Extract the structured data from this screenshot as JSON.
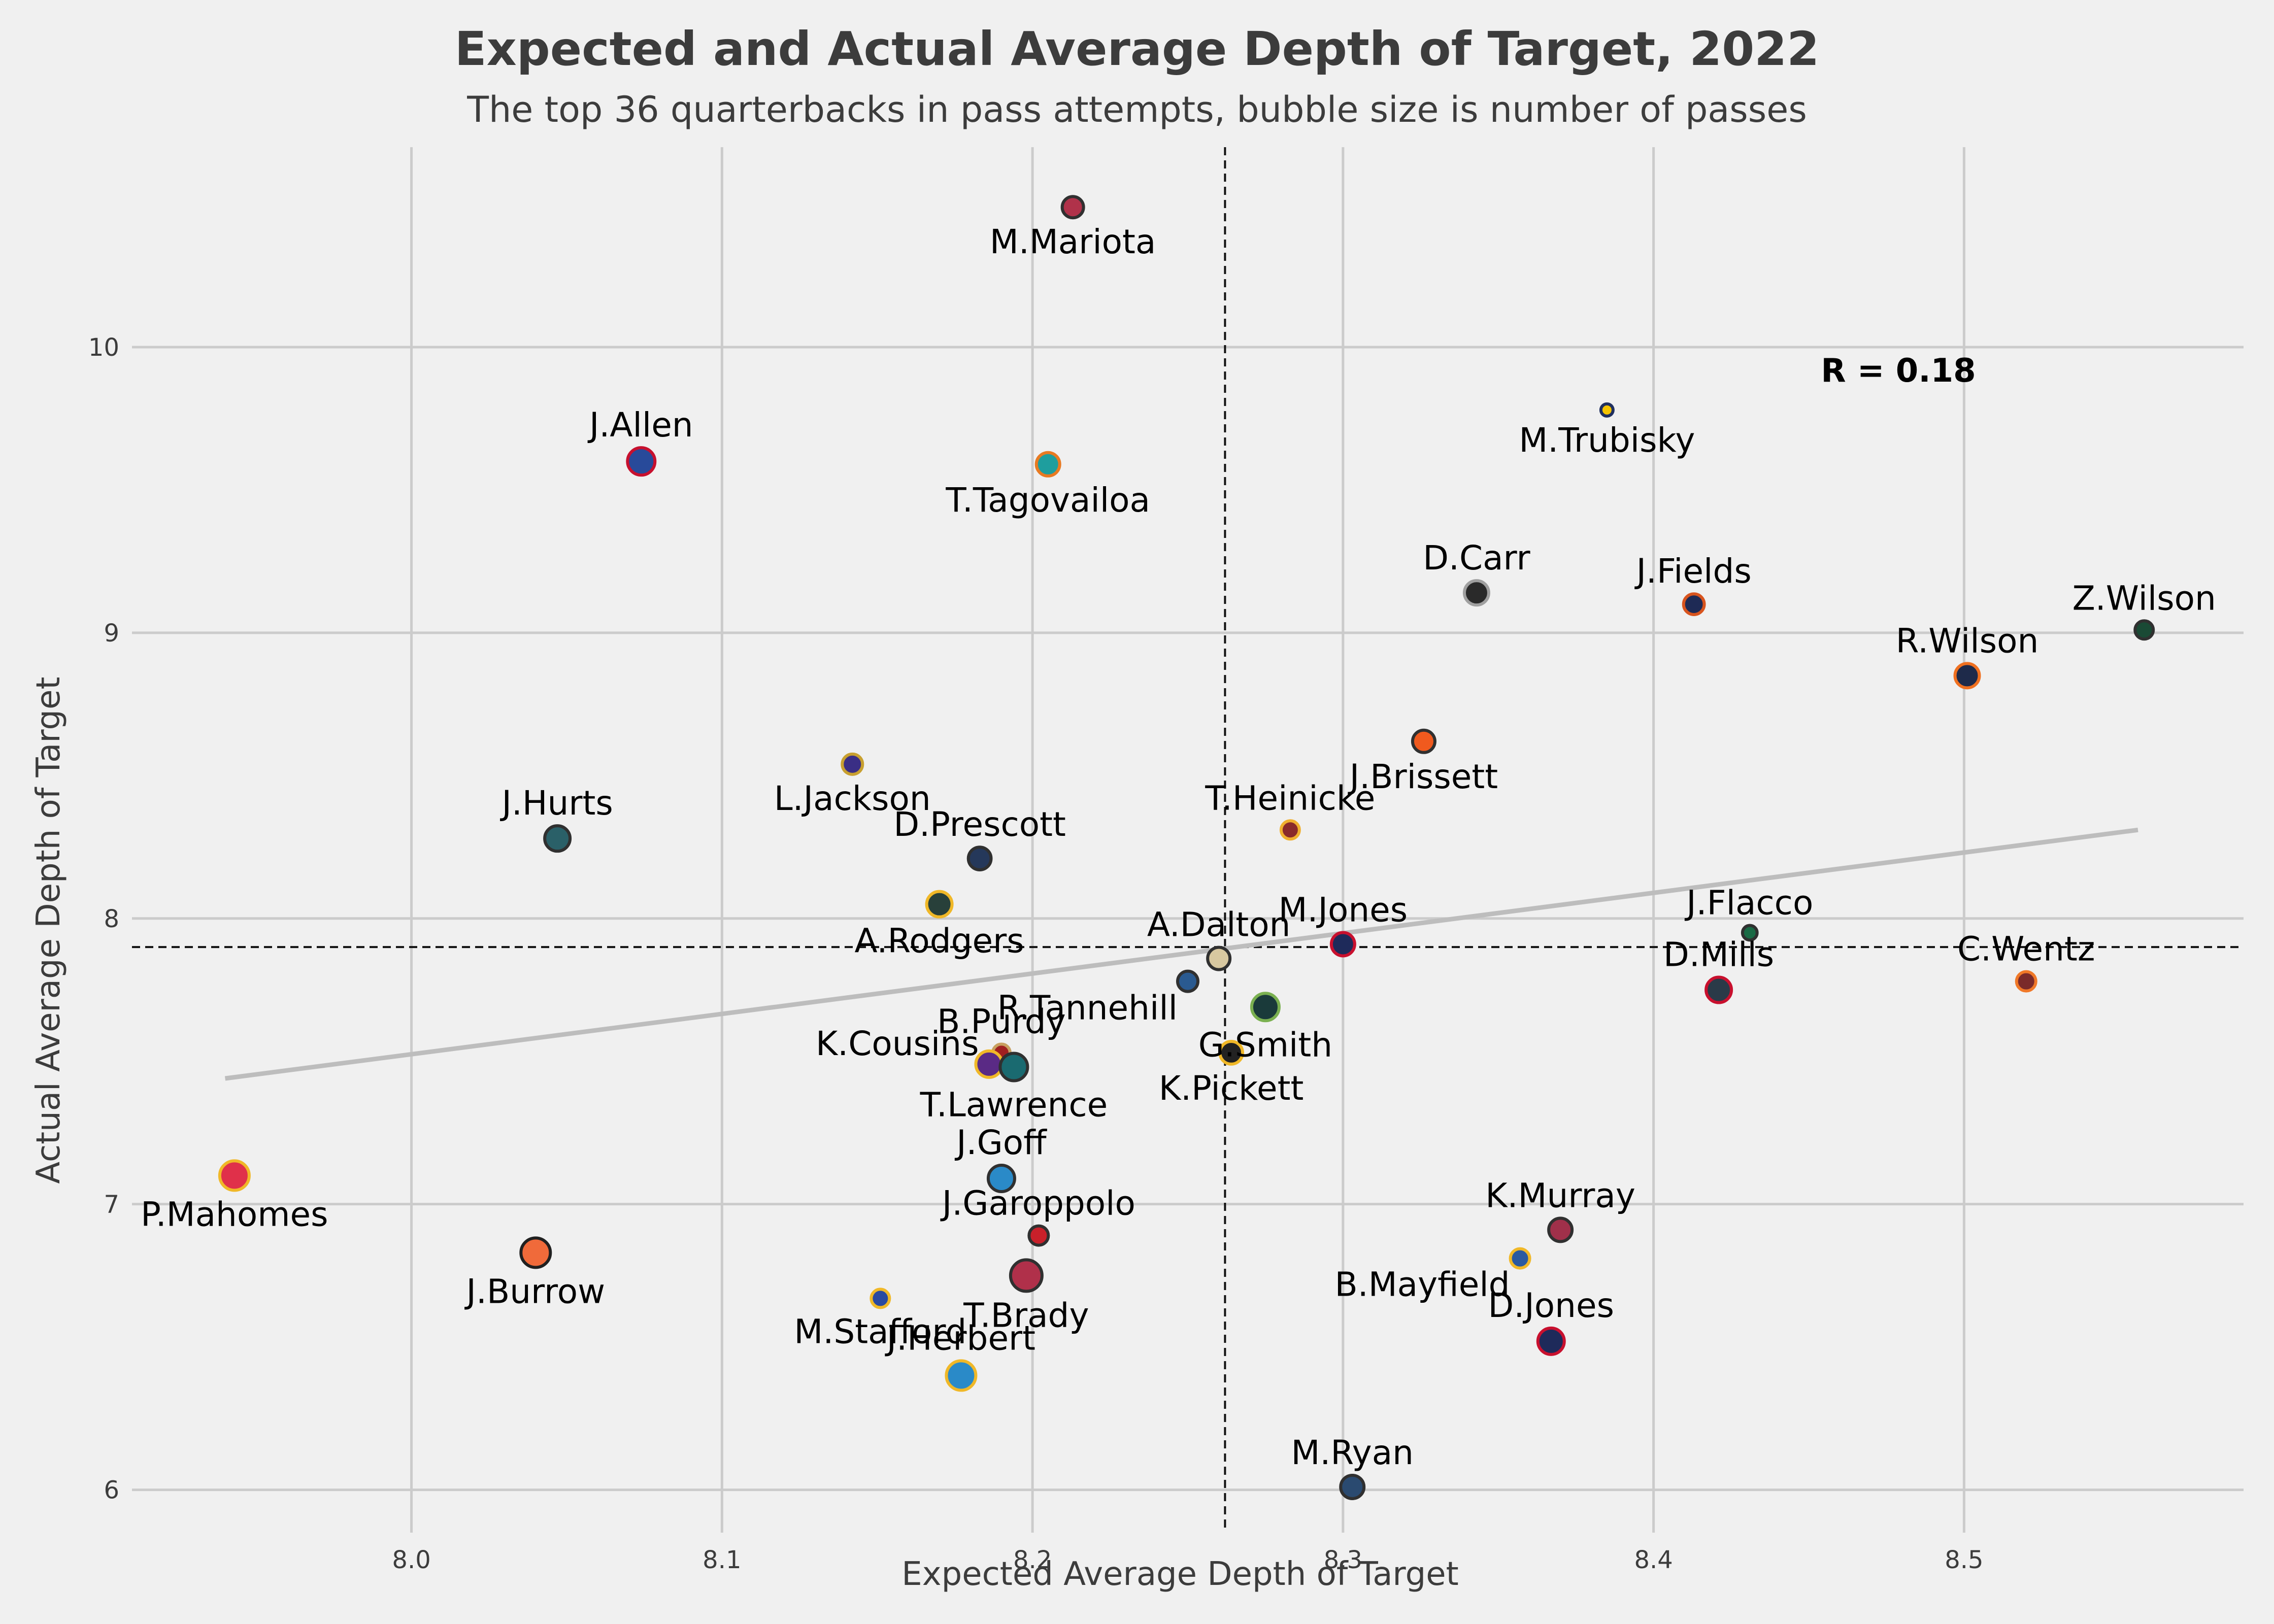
{
  "chart_data": {
    "type": "scatter",
    "title": "Expected and Actual Average Depth of Target, 2022",
    "subtitle": "The top 36 quarterbacks in pass attempts, bubble size is number of passes",
    "xlabel": "Expected Average Depth of Target",
    "ylabel": "Actual Average Depth of Target",
    "xlim": [
      7.91,
      8.59
    ],
    "ylim": [
      5.85,
      10.7
    ],
    "xticks": [
      8.0,
      8.1,
      8.2,
      8.3,
      8.4,
      8.5
    ],
    "yticks": [
      6,
      7,
      8,
      9,
      10
    ],
    "mean_x": 8.262,
    "mean_y": 7.9,
    "annotation": "R = 0.18",
    "trendline": {
      "x": [
        7.94,
        8.556
      ],
      "y": [
        7.44,
        8.31
      ],
      "color": "#bdbdbd"
    },
    "grid": true,
    "points": [
      {
        "name": "M.Mariota",
        "x": 8.213,
        "y": 10.49,
        "size": 0.65,
        "fill": "#b0324a",
        "stroke": "#303030",
        "label_pos": "below"
      },
      {
        "name": "M.Trubisky",
        "x": 8.385,
        "y": 9.78,
        "size": 0.2,
        "fill": "#f5c400",
        "stroke": "#203060",
        "label_pos": "below"
      },
      {
        "name": "J.Allen",
        "x": 8.074,
        "y": 9.6,
        "size": 0.95,
        "fill": "#284a9a",
        "stroke": "#c7102e",
        "label_pos": "above"
      },
      {
        "name": "T.Tagovailoa",
        "x": 8.205,
        "y": 9.59,
        "size": 0.75,
        "fill": "#1e9e9e",
        "stroke": "#e87a22",
        "label_pos": "below"
      },
      {
        "name": "D.Carr",
        "x": 8.343,
        "y": 9.14,
        "size": 0.8,
        "fill": "#2a2a2a",
        "stroke": "#a0a0a0",
        "label_pos": "above"
      },
      {
        "name": "J.Fields",
        "x": 8.413,
        "y": 9.1,
        "size": 0.62,
        "fill": "#1e2a55",
        "stroke": "#d8541e",
        "label_pos": "above"
      },
      {
        "name": "Z.Wilson",
        "x": 8.558,
        "y": 9.01,
        "size": 0.5,
        "fill": "#1a4a35",
        "stroke": "#303030",
        "label_pos": "above"
      },
      {
        "name": "R.Wilson",
        "x": 8.501,
        "y": 8.85,
        "size": 0.8,
        "fill": "#1e2a4a",
        "stroke": "#f07020",
        "label_pos": "above"
      },
      {
        "name": "J.Brissett",
        "x": 8.326,
        "y": 8.62,
        "size": 0.7,
        "fill": "#f05a1e",
        "stroke": "#303030",
        "label_pos": "below"
      },
      {
        "name": "L.Jackson",
        "x": 8.142,
        "y": 8.54,
        "size": 0.6,
        "fill": "#3a2e85",
        "stroke": "#c8a030",
        "label_pos": "below"
      },
      {
        "name": "T.Heinicke",
        "x": 8.283,
        "y": 8.31,
        "size": 0.5,
        "fill": "#8a2a2a",
        "stroke": "#f0b030",
        "label_pos": "above"
      },
      {
        "name": "J.Hurts",
        "x": 8.047,
        "y": 8.28,
        "size": 0.85,
        "fill": "#2a6068",
        "stroke": "#303030",
        "label_pos": "above"
      },
      {
        "name": "D.Prescott",
        "x": 8.183,
        "y": 8.21,
        "size": 0.72,
        "fill": "#25385a",
        "stroke": "#303030",
        "label_pos": "above"
      },
      {
        "name": "A.Rodgers",
        "x": 8.17,
        "y": 8.05,
        "size": 0.85,
        "fill": "#28403a",
        "stroke": "#f0b828",
        "label_pos": "below"
      },
      {
        "name": "J.Flacco",
        "x": 8.431,
        "y": 7.95,
        "size": 0.32,
        "fill": "#1a6a45",
        "stroke": "#303030",
        "label_pos": "above"
      },
      {
        "name": "M.Jones",
        "x": 8.3,
        "y": 7.91,
        "size": 0.75,
        "fill": "#1e2a5a",
        "stroke": "#c8102e",
        "label_pos": "above"
      },
      {
        "name": "A.Dalton",
        "x": 8.26,
        "y": 7.86,
        "size": 0.7,
        "fill": "#d8c8a0",
        "stroke": "#303030",
        "label_pos": "above"
      },
      {
        "name": "R.Tannehill",
        "x": 8.25,
        "y": 7.78,
        "size": 0.6,
        "fill": "#2a5a90",
        "stroke": "#303030",
        "label_pos": "below_left"
      },
      {
        "name": "C.Wentz",
        "x": 8.52,
        "y": 7.78,
        "size": 0.55,
        "fill": "#7a2a2a",
        "stroke": "#f07828",
        "label_pos": "above"
      },
      {
        "name": "D.Mills",
        "x": 8.421,
        "y": 7.75,
        "size": 0.85,
        "fill": "#2a3a48",
        "stroke": "#c8102e",
        "label_pos": "above"
      },
      {
        "name": "G.Smith",
        "x": 8.275,
        "y": 7.69,
        "size": 0.95,
        "fill": "#1a3a3a",
        "stroke": "#7ab050",
        "label_pos": "below"
      },
      {
        "name": "K.Pickett",
        "x": 8.264,
        "y": 7.53,
        "size": 0.72,
        "fill": "#222222",
        "stroke": "#f0b828",
        "label_pos": "below"
      },
      {
        "name": "B.Purdy",
        "x": 8.19,
        "y": 7.53,
        "size": 0.45,
        "fill": "#a02020",
        "stroke": "#c8a060",
        "label_pos": "above"
      },
      {
        "name": "K.Cousins",
        "x": 8.186,
        "y": 7.49,
        "size": 0.9,
        "fill": "#5a2a85",
        "stroke": "#f0b828",
        "label_pos": "above_left"
      },
      {
        "name": "T.Lawrence",
        "x": 8.194,
        "y": 7.48,
        "size": 0.95,
        "fill": "#1a6a70",
        "stroke": "#303030",
        "label_pos": "below"
      },
      {
        "name": "P.Mahomes",
        "x": 7.943,
        "y": 7.1,
        "size": 1.05,
        "fill": "#e0304a",
        "stroke": "#f0b828",
        "label_pos": "below"
      },
      {
        "name": "J.Goff",
        "x": 8.19,
        "y": 7.09,
        "size": 0.9,
        "fill": "#2a8ac8",
        "stroke": "#303030",
        "label_pos": "above"
      },
      {
        "name": "K.Murray",
        "x": 8.37,
        "y": 6.91,
        "size": 0.75,
        "fill": "#a0304a",
        "stroke": "#303030",
        "label_pos": "above"
      },
      {
        "name": "J.Garoppolo",
        "x": 8.202,
        "y": 6.89,
        "size": 0.55,
        "fill": "#c8202a",
        "stroke": "#303030",
        "label_pos": "above"
      },
      {
        "name": "J.Burrow",
        "x": 8.04,
        "y": 6.83,
        "size": 1.05,
        "fill": "#f06a3a",
        "stroke": "#202020",
        "label_pos": "below"
      },
      {
        "name": "B.Mayfield",
        "x": 8.357,
        "y": 6.81,
        "size": 0.55,
        "fill": "#2a5aa0",
        "stroke": "#f0b828",
        "label_pos": "below_left"
      },
      {
        "name": "T.Brady",
        "x": 8.198,
        "y": 6.75,
        "size": 1.15,
        "fill": "#b0304a",
        "stroke": "#303030",
        "label_pos": "below"
      },
      {
        "name": "M.Stafford",
        "x": 8.151,
        "y": 6.67,
        "size": 0.5,
        "fill": "#2a4aa0",
        "stroke": "#f0b828",
        "label_pos": "below"
      },
      {
        "name": "D.Jones",
        "x": 8.367,
        "y": 6.52,
        "size": 0.9,
        "fill": "#1e2a5a",
        "stroke": "#c8102e",
        "label_pos": "above"
      },
      {
        "name": "J.Herbert",
        "x": 8.177,
        "y": 6.4,
        "size": 1.05,
        "fill": "#2a8ac8",
        "stroke": "#f0b828",
        "label_pos": "above"
      },
      {
        "name": "M.Ryan",
        "x": 8.303,
        "y": 6.01,
        "size": 0.75,
        "fill": "#2a4a70",
        "stroke": "#303030",
        "label_pos": "above"
      }
    ]
  }
}
